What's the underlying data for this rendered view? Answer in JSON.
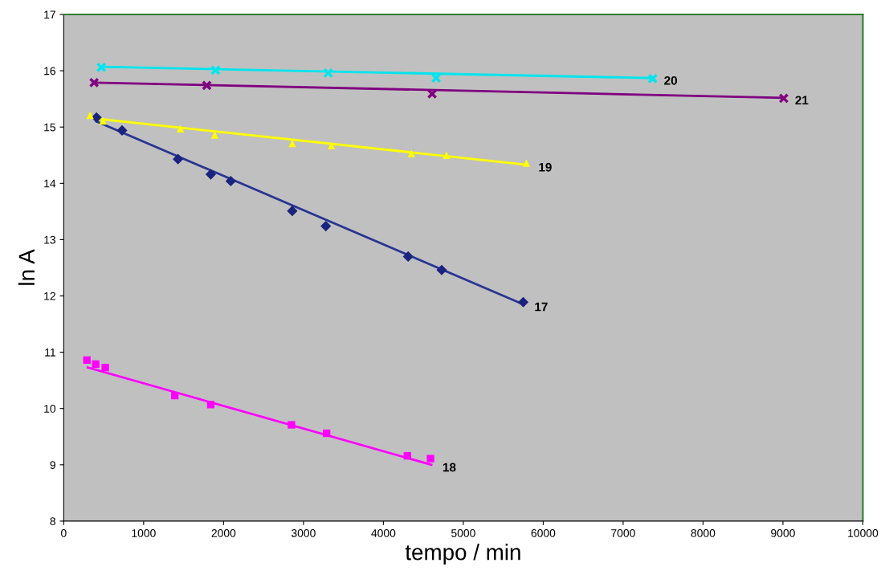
{
  "chart_data": {
    "type": "scatter",
    "xlabel": "tempo / min",
    "ylabel": "ln A",
    "xlim": [
      0,
      10000
    ],
    "ylim": [
      8,
      17
    ],
    "xticks": [
      0,
      1000,
      2000,
      3000,
      4000,
      5000,
      6000,
      7000,
      8000,
      9000,
      10000
    ],
    "yticks": [
      8,
      9,
      10,
      11,
      12,
      13,
      14,
      15,
      16,
      17
    ],
    "grid": false,
    "legend": false,
    "series": [
      {
        "marker": "diamond",
        "color": "#1a237e",
        "x": [
          410,
          730,
          1430,
          1840,
          2090,
          2860,
          3280,
          4310,
          4730,
          5750
        ],
        "values": [
          15.17,
          14.94,
          14.43,
          14.16,
          14.04,
          13.51,
          13.24,
          12.7,
          12.46,
          11.89
        ]
      },
      {
        "type": "line",
        "marker": "none",
        "color": "#283593",
        "x": [
          410,
          5750
        ],
        "values": [
          15.1,
          11.85
        ]
      },
      {
        "marker": "square",
        "color": "#ff00ff",
        "x": [
          290,
          400,
          520,
          1390,
          1840,
          2850,
          3290,
          4300,
          4590
        ],
        "values": [
          10.86,
          10.79,
          10.73,
          10.23,
          10.07,
          9.71,
          9.56,
          9.16,
          9.11
        ]
      },
      {
        "type": "line",
        "marker": "none",
        "color": "#ff00ff",
        "x": [
          300,
          4600
        ],
        "values": [
          10.73,
          9.0
        ]
      },
      {
        "marker": "triangle",
        "color": "#ffff00",
        "x": [
          330,
          490,
          1460,
          1890,
          2860,
          3350,
          4350,
          4790,
          5790
        ],
        "values": [
          15.21,
          15.11,
          14.97,
          14.86,
          14.71,
          14.67,
          14.53,
          14.5,
          14.36
        ]
      },
      {
        "type": "line",
        "marker": "none",
        "color": "#ffff00",
        "x": [
          400,
          5800
        ],
        "values": [
          15.15,
          14.33
        ]
      },
      {
        "marker": "cross",
        "color": "#00e5ee",
        "x": [
          470,
          1900,
          3310,
          4660,
          7370
        ],
        "values": [
          16.06,
          16.01,
          15.96,
          15.87,
          15.86
        ]
      },
      {
        "type": "line",
        "marker": "none",
        "color": "#00e5ee",
        "x": [
          470,
          7370
        ],
        "values": [
          16.07,
          15.87
        ]
      },
      {
        "marker": "cross",
        "color": "#800080",
        "x": [
          380,
          1790,
          4610,
          9010
        ],
        "values": [
          15.79,
          15.74,
          15.59,
          15.51
        ]
      },
      {
        "type": "line",
        "marker": "none",
        "color": "#800080",
        "x": [
          380,
          9010
        ],
        "values": [
          15.79,
          15.52
        ]
      }
    ],
    "annotations": [
      {
        "text": "17",
        "x": 5750,
        "y": 11.85
      },
      {
        "text": "18",
        "x": 4600,
        "y": 9.0
      },
      {
        "text": "19",
        "x": 5800,
        "y": 14.33
      },
      {
        "text": "20",
        "x": 7370,
        "y": 15.87
      },
      {
        "text": "21",
        "x": 9010,
        "y": 15.52
      }
    ]
  }
}
